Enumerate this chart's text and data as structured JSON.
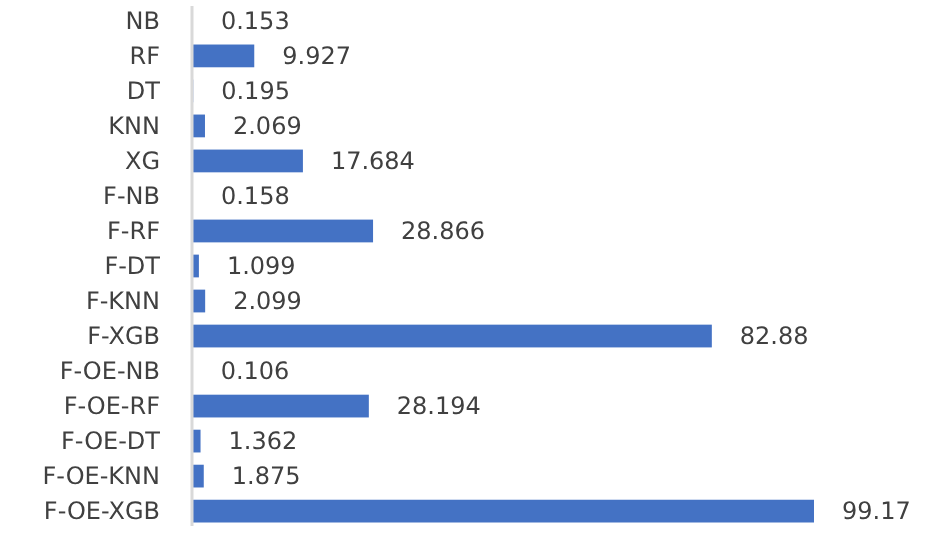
{
  "chart_data": {
    "type": "bar",
    "orientation": "horizontal",
    "categories": [
      "NB",
      "RF",
      "DT",
      "KNN",
      "XG",
      "F-NB",
      "F-RF",
      "F-DT",
      "F-KNN",
      "F-XGB",
      "F-OE-NB",
      "F-OE-RF",
      "F-OE-DT",
      "F-OE-KNN",
      "F-OE-XGB"
    ],
    "values": [
      0.153,
      9.927,
      0.195,
      2.069,
      17.684,
      0.158,
      28.866,
      1.099,
      2.099,
      82.88,
      0.106,
      28.194,
      1.362,
      1.875,
      99.17
    ],
    "color": "#4472c4",
    "data_labels": true
  }
}
